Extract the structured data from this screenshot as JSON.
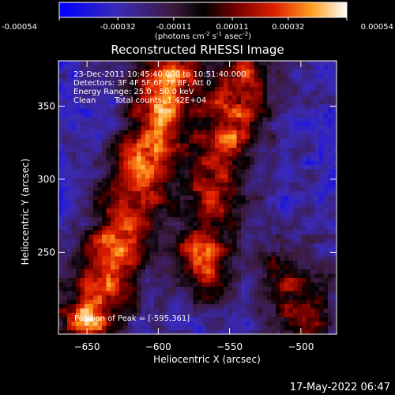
{
  "chart_data": {
    "type": "heatmap",
    "title": "Reconstructed RHESSI Image",
    "xlabel": "Heliocentric X (arcsec)",
    "ylabel": "Heliocentric Y (arcsec)",
    "xlim": [
      -670,
      -475
    ],
    "ylim": [
      194,
      381
    ],
    "x_ticks": [
      -650,
      -600,
      -550,
      -500
    ],
    "y_ticks": [
      250,
      300,
      350
    ],
    "colorbar": {
      "range": [
        -0.00054,
        0.00054
      ],
      "ticks": [
        "-0.00054",
        "-0.00032",
        "-0.00011",
        "0.00011",
        "0.00032",
        "0.00054"
      ],
      "unit_parts": [
        "(photons cm",
        "-2",
        " s",
        "-1",
        " asec",
        "-2",
        ")"
      ]
    },
    "annotations": {
      "date_range": "23-Dec-2011 10:45:40.000 to 10:51:40.000",
      "detectors": "Detectors: 3F 4F 5F 6F 7F 8F, Att 0",
      "energy": "Energy Range: 25.0 - 50.0 keV",
      "clean": "Clean",
      "total_counts": "Total counts: 1.42E+04",
      "peak": "Position of Peak = [-595,361]"
    },
    "footer_date": "17-May-2022 06:47",
    "grid": false,
    "emission_ridges": [
      {
        "points": [
          [
            -648,
            205
          ],
          [
            -630,
            250
          ],
          [
            -612,
            300
          ],
          [
            -598,
            350
          ],
          [
            -590,
            381
          ]
        ],
        "peak": 0.00054
      },
      {
        "points": [
          [
            -570,
            240
          ],
          [
            -562,
            290
          ],
          [
            -548,
            340
          ],
          [
            -540,
            365
          ]
        ],
        "peak": 0.00044
      },
      {
        "points": [
          [
            -510,
            235
          ],
          [
            -495,
            200
          ]
        ],
        "peak": 0.00034
      }
    ],
    "peak_position": [
      -595,
      361
    ]
  }
}
